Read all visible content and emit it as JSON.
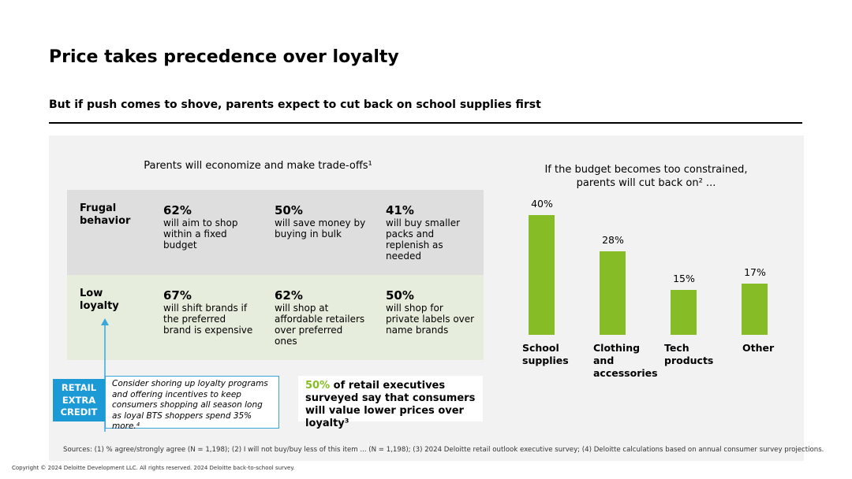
{
  "title": "Price takes precedence over loyalty",
  "subtitle": "But if push comes to shove, parents expect to cut back on school supplies first",
  "table": {
    "heading": "Parents will economize and make trade-offs¹",
    "rows": [
      {
        "label": "Frugal behavior",
        "cells": [
          {
            "pct": "62%",
            "text": "will aim to shop within a fixed budget"
          },
          {
            "pct": "50%",
            "text": "will save money by buying in bulk"
          },
          {
            "pct": "41%",
            "text": "will buy smaller packs and replenish as needed"
          }
        ]
      },
      {
        "label": "Low loyalty",
        "cells": [
          {
            "pct": "67%",
            "text": "will shift brands if the preferred brand is expensive"
          },
          {
            "pct": "62%",
            "text": "will shop at affordable retailers over preferred ones"
          },
          {
            "pct": "50%",
            "text": "will shop for private labels over name brands"
          }
        ]
      }
    ]
  },
  "callout": {
    "tag": "RETAIL EXTRA CREDIT",
    "text": "Consider shoring up loyalty programs and offering incentives to keep consumers shopping all season long as loyal BTS shoppers spend 35% more.⁴"
  },
  "exec_note": {
    "highlight": "50%",
    "text": "of retail executives surveyed say that consumers will value lower prices over loyalty³"
  },
  "chart_data": {
    "type": "bar",
    "title": "If the budget becomes too constrained, parents will cut back on² ...",
    "categories": [
      "School supplies",
      "Clothing and accessories",
      "Tech products",
      "Other"
    ],
    "values": [
      40,
      28,
      15,
      17
    ],
    "value_labels": [
      "40%",
      "28%",
      "15%",
      "17%"
    ],
    "color": "#86bc25"
  },
  "sources": "Sources: (1) % agree/strongly agree (N = 1,198); (2) I will not buy/buy less of this item ... (N = 1,198); (3) 2024 Deloitte retail outlook executive survey; (4) Deloitte calculations based on annual consumer survey projections.",
  "copyright": "Copyright © 2024 Deloitte Development LLC. All rights reserved. 2024 Deloitte back-to-school survey."
}
